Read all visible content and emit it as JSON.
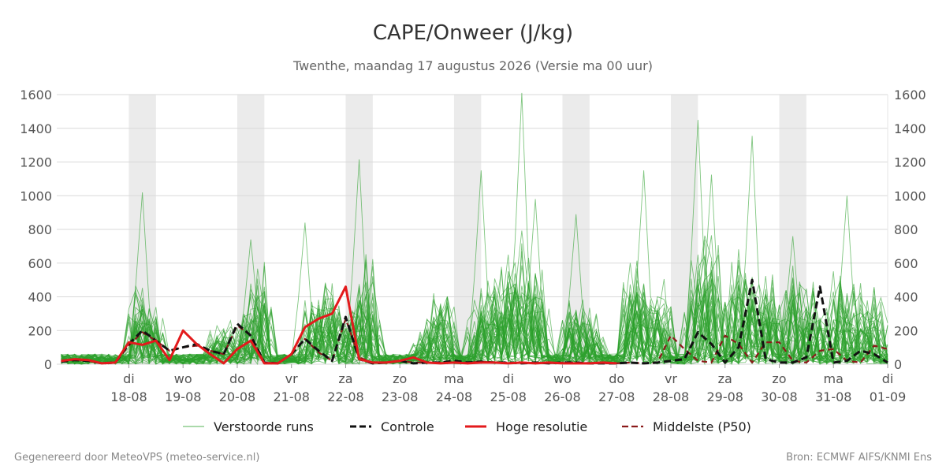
{
  "chart_data": {
    "type": "line",
    "title": "CAPE/Onweer (J/kg)",
    "subtitle": "Twenthe, maandag 17 augustus 2026 (Versie ma 00 uur)",
    "ylim": [
      0,
      1600
    ],
    "yticks": [
      0,
      200,
      400,
      600,
      800,
      1000,
      1200,
      1400,
      1600
    ],
    "xlim_days": [
      16.67,
      32
    ],
    "x_ticks": [
      {
        "day": 18,
        "dow": "di",
        "date": "18-08"
      },
      {
        "day": 19,
        "dow": "wo",
        "date": "19-08"
      },
      {
        "day": 20,
        "dow": "do",
        "date": "20-08"
      },
      {
        "day": 21,
        "dow": "vr",
        "date": "21-08"
      },
      {
        "day": 22,
        "dow": "za",
        "date": "22-08"
      },
      {
        "day": 23,
        "dow": "zo",
        "date": "23-08"
      },
      {
        "day": 24,
        "dow": "ma",
        "date": "24-08"
      },
      {
        "day": 25,
        "dow": "di",
        "date": "25-08"
      },
      {
        "day": 26,
        "dow": "wo",
        "date": "26-08"
      },
      {
        "day": 27,
        "dow": "do",
        "date": "27-08"
      },
      {
        "day": 28,
        "dow": "vr",
        "date": "28-08"
      },
      {
        "day": 29,
        "dow": "za",
        "date": "29-08"
      },
      {
        "day": 30,
        "dow": "zo",
        "date": "30-08"
      },
      {
        "day": 31,
        "dow": "ma",
        "date": "31-08"
      },
      {
        "day": 32,
        "dow": "di",
        "date": "01-09"
      }
    ],
    "shaded_day_periods": [
      [
        18,
        18.5
      ],
      [
        20,
        20.5
      ],
      [
        22,
        22.5
      ],
      [
        24,
        24.5
      ],
      [
        26,
        26.5
      ],
      [
        28,
        28.5
      ],
      [
        30,
        30.5
      ]
    ],
    "series": [
      {
        "name": "Controle",
        "style": "dashed",
        "color": "#111111",
        "x": [
          16.75,
          17.0,
          17.25,
          17.5,
          17.75,
          18.0,
          18.25,
          18.5,
          18.75,
          19.0,
          19.25,
          19.5,
          19.75,
          20.0,
          20.25,
          20.5,
          20.75,
          21.0,
          21.25,
          21.5,
          21.75,
          22.0,
          22.25,
          22.5,
          22.75,
          23.0,
          23.25,
          23.5,
          23.75,
          24.0,
          24.25,
          24.5,
          24.75,
          25.0,
          25.25,
          25.5,
          25.75,
          26.0,
          26.25,
          26.5,
          26.75,
          27.0,
          27.25,
          27.5,
          27.75,
          28.0,
          28.25,
          28.5,
          28.75,
          29.0,
          29.25,
          29.5,
          29.75,
          30.0,
          30.25,
          30.5,
          30.75,
          31.0,
          31.25,
          31.5,
          31.75,
          32.0
        ],
        "values": [
          15,
          25,
          20,
          5,
          10,
          120,
          200,
          140,
          80,
          100,
          120,
          80,
          60,
          240,
          170,
          10,
          5,
          60,
          150,
          80,
          20,
          280,
          30,
          5,
          10,
          20,
          5,
          10,
          10,
          20,
          10,
          15,
          10,
          10,
          5,
          10,
          5,
          10,
          10,
          5,
          5,
          5,
          10,
          5,
          10,
          20,
          30,
          190,
          120,
          10,
          100,
          500,
          30,
          10,
          10,
          40,
          460,
          10,
          20,
          80,
          60,
          10
        ]
      },
      {
        "name": "Hoge resolutie",
        "style": "solid",
        "color": "#e31a1c",
        "x": [
          16.75,
          17.0,
          17.25,
          17.5,
          17.75,
          18.0,
          18.25,
          18.5,
          18.75,
          19.0,
          19.25,
          19.5,
          19.75,
          20.0,
          20.25,
          20.5,
          20.75,
          21.0,
          21.25,
          21.5,
          21.75,
          22.0,
          22.25,
          22.5,
          22.75,
          23.0,
          23.25,
          23.5,
          23.75,
          24.0,
          24.25,
          24.5,
          24.75,
          25.0,
          25.25,
          25.5,
          25.75,
          26.0,
          26.25,
          26.5,
          26.75,
          27.0
        ],
        "values": [
          20,
          30,
          25,
          5,
          10,
          130,
          115,
          140,
          25,
          200,
          120,
          60,
          5,
          90,
          140,
          5,
          5,
          60,
          220,
          270,
          300,
          460,
          30,
          10,
          10,
          20,
          40,
          10,
          5,
          10,
          5,
          10,
          10,
          5,
          10,
          5,
          10,
          5,
          5,
          5,
          10,
          5
        ]
      },
      {
        "name": "Middelste (P50)",
        "style": "dashed",
        "color": "#8b1a1a",
        "x": [
          16.75,
          17.0,
          17.25,
          17.5,
          17.75,
          18.0,
          18.25,
          18.5,
          18.75,
          19.0,
          19.25,
          19.5,
          19.75,
          20.0,
          20.25,
          20.5,
          20.75,
          21.0,
          21.25,
          21.5,
          21.75,
          22.0,
          22.25,
          22.5,
          22.75,
          23.0,
          23.25,
          23.5,
          23.75,
          24.0,
          24.25,
          24.5,
          24.75,
          25.0,
          25.25,
          25.5,
          25.75,
          26.0,
          26.25,
          26.5,
          26.75,
          27.0,
          27.25,
          27.5,
          27.75,
          28.0,
          28.25,
          28.5,
          28.75,
          29.0,
          29.25,
          29.5,
          29.75,
          30.0,
          30.25,
          30.5,
          30.75,
          31.0,
          31.25,
          31.5,
          31.75,
          32.0
        ],
        "values": [
          20,
          25,
          20,
          5,
          10,
          110,
          190,
          140,
          80,
          100,
          110,
          80,
          60,
          230,
          170,
          10,
          5,
          60,
          150,
          70,
          20,
          270,
          40,
          10,
          10,
          20,
          10,
          10,
          10,
          10,
          10,
          15,
          10,
          10,
          5,
          10,
          5,
          10,
          10,
          5,
          5,
          5,
          10,
          5,
          10,
          170,
          90,
          20,
          10,
          170,
          120,
          10,
          130,
          130,
          20,
          10,
          80,
          90,
          20,
          10,
          110,
          90
        ]
      }
    ],
    "legend": [
      {
        "label": "Verstoorde runs",
        "style": "thin",
        "color": "#2ca02c"
      },
      {
        "label": "Controle",
        "style": "dashed",
        "color": "#111111"
      },
      {
        "label": "Hoge resolutie",
        "style": "solid",
        "color": "#e31a1c"
      },
      {
        "label": "Middelste (P50)",
        "style": "dashed",
        "color": "#8b1a1a"
      }
    ],
    "legend_position": "bottom",
    "grid": true,
    "ensemble": {
      "name": "Verstoorde runs",
      "color": "#2ca02c",
      "member_count": 50,
      "peak_days": [
        18.2,
        18.4,
        19.7,
        20.2,
        20.4,
        21.4,
        21.65,
        21.8,
        22.2,
        22.4,
        23.5,
        23.8,
        24.5,
        24.75,
        25.0,
        25.2,
        25.5,
        26.2,
        26.5,
        27.3,
        27.5,
        27.8,
        28.5,
        28.7,
        29.25,
        29.5,
        29.8,
        30.25,
        30.6,
        31.1,
        31.45,
        31.75
      ],
      "peak_strengths": [
        500,
        350,
        250,
        350,
        600,
        380,
        500,
        380,
        450,
        650,
        250,
        480,
        450,
        550,
        600,
        800,
        600,
        450,
        300,
        600,
        500,
        500,
        650,
        900,
        700,
        600,
        500,
        600,
        500,
        550,
        500,
        500
      ],
      "extreme_peaks": [
        {
          "day": 18.25,
          "value": 1020
        },
        {
          "day": 20.25,
          "value": 740
        },
        {
          "day": 21.25,
          "value": 840
        },
        {
          "day": 22.25,
          "value": 1215
        },
        {
          "day": 24.5,
          "value": 1150
        },
        {
          "day": 25.25,
          "value": 1610
        },
        {
          "day": 25.5,
          "value": 980
        },
        {
          "day": 26.25,
          "value": 890
        },
        {
          "day": 27.5,
          "value": 1150
        },
        {
          "day": 28.5,
          "value": 1450
        },
        {
          "day": 28.75,
          "value": 1125
        },
        {
          "day": 29.5,
          "value": 1355
        },
        {
          "day": 30.25,
          "value": 760
        },
        {
          "day": 31.25,
          "value": 1000
        }
      ]
    }
  },
  "footer": {
    "left": "Gegenereerd door MeteoVPS (meteo-service.nl)",
    "right": "Bron: ECMWF AIFS/KNMI Ens"
  }
}
